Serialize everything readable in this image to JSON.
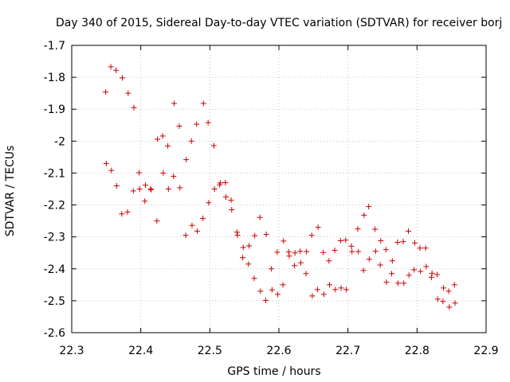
{
  "chart_data": {
    "type": "scatter",
    "title": "Day 340 of 2015, Sidereal Day-to-day VTEC variation (SDTVAR) for receiver borj",
    "xlabel": "GPS time / hours",
    "ylabel": "SDTVAR / TECUs",
    "xlim": [
      22.3,
      22.9
    ],
    "ylim": [
      -2.6,
      -1.7
    ],
    "xticks": [
      22.3,
      22.4,
      22.5,
      22.6,
      22.7,
      22.8,
      22.9
    ],
    "yticks": [
      -2.6,
      -2.5,
      -2.4,
      -2.3,
      -2.2,
      -2.1,
      -2.0,
      -1.9,
      -1.8,
      -1.7
    ],
    "xtick_labels": [
      "22.3",
      "22.4",
      "22.5",
      "22.6",
      "22.7",
      "22.8",
      "22.9"
    ],
    "ytick_labels": [
      "-2.6",
      "-2.5",
      "-2.4",
      "-2.3",
      "-2.2",
      "-2.1",
      "-2",
      "-1.9",
      "-1.8",
      "-1.7"
    ],
    "grid": true,
    "marker": "+",
    "marker_color": "#cc0000",
    "series": [
      {
        "name": "SDTVAR",
        "points": [
          [
            22.3492,
            -1.846
          ],
          [
            22.35,
            -2.07
          ],
          [
            22.3567,
            -1.767
          ],
          [
            22.3575,
            -2.092
          ],
          [
            22.3642,
            -1.778
          ],
          [
            22.365,
            -2.14
          ],
          [
            22.3725,
            -2.228
          ],
          [
            22.3733,
            -1.802
          ],
          [
            22.3808,
            -2.222
          ],
          [
            22.3817,
            -1.85
          ],
          [
            22.3892,
            -2.156
          ],
          [
            22.39,
            -1.895
          ],
          [
            22.3975,
            -2.099
          ],
          [
            22.3983,
            -2.15
          ],
          [
            22.4058,
            -2.188
          ],
          [
            22.4067,
            -2.138
          ],
          [
            22.4142,
            -2.15
          ],
          [
            22.415,
            -2.152
          ],
          [
            22.4233,
            -2.25
          ],
          [
            22.4242,
            -1.994
          ],
          [
            22.4317,
            -1.984
          ],
          [
            22.4325,
            -2.1
          ],
          [
            22.4392,
            -2.015
          ],
          [
            22.44,
            -2.15
          ],
          [
            22.4475,
            -2.11
          ],
          [
            22.4483,
            -1.882
          ],
          [
            22.4558,
            -1.953
          ],
          [
            22.4567,
            -2.146
          ],
          [
            22.465,
            -2.295
          ],
          [
            22.4658,
            -2.058
          ],
          [
            22.4733,
            -2.0
          ],
          [
            22.4742,
            -2.264
          ],
          [
            22.4808,
            -1.947
          ],
          [
            22.4817,
            -2.282
          ],
          [
            22.49,
            -2.242
          ],
          [
            22.4908,
            -1.882
          ],
          [
            22.4975,
            -1.942
          ],
          [
            22.4983,
            -2.193
          ],
          [
            22.5058,
            -2.014
          ],
          [
            22.5067,
            -2.15
          ],
          [
            22.5142,
            -2.137
          ],
          [
            22.515,
            -2.131
          ],
          [
            22.5225,
            -2.13
          ],
          [
            22.5233,
            -2.175
          ],
          [
            22.5308,
            -2.185
          ],
          [
            22.5317,
            -2.215
          ],
          [
            22.5392,
            -2.285
          ],
          [
            22.54,
            -2.295
          ],
          [
            22.5475,
            -2.365
          ],
          [
            22.5483,
            -2.333
          ],
          [
            22.5558,
            -2.385
          ],
          [
            22.5567,
            -2.328
          ],
          [
            22.5642,
            -2.43
          ],
          [
            22.565,
            -2.296
          ],
          [
            22.5725,
            -2.239
          ],
          [
            22.5733,
            -2.47
          ],
          [
            22.5808,
            -2.499
          ],
          [
            22.5817,
            -2.292
          ],
          [
            22.5892,
            -2.4
          ],
          [
            22.59,
            -2.466
          ],
          [
            22.5975,
            -2.348
          ],
          [
            22.5983,
            -2.48
          ],
          [
            22.6058,
            -2.45
          ],
          [
            22.6067,
            -2.313
          ],
          [
            22.6142,
            -2.347
          ],
          [
            22.615,
            -2.36
          ],
          [
            22.6225,
            -2.39
          ],
          [
            22.6233,
            -2.35
          ],
          [
            22.6308,
            -2.345
          ],
          [
            22.6317,
            -2.381
          ],
          [
            22.6392,
            -2.415
          ],
          [
            22.64,
            -2.346
          ],
          [
            22.6475,
            -2.295
          ],
          [
            22.6483,
            -2.485
          ],
          [
            22.6558,
            -2.465
          ],
          [
            22.6567,
            -2.27
          ],
          [
            22.6642,
            -2.349
          ],
          [
            22.665,
            -2.48
          ],
          [
            22.6725,
            -2.375
          ],
          [
            22.6733,
            -2.45
          ],
          [
            22.6808,
            -2.342
          ],
          [
            22.6817,
            -2.465
          ],
          [
            22.6892,
            -2.312
          ],
          [
            22.69,
            -2.46
          ],
          [
            22.6967,
            -2.31
          ],
          [
            22.6975,
            -2.465
          ],
          [
            22.705,
            -2.329
          ],
          [
            22.7058,
            -2.346
          ],
          [
            22.7142,
            -2.275
          ],
          [
            22.715,
            -2.346
          ],
          [
            22.7225,
            -2.405
          ],
          [
            22.7233,
            -2.232
          ],
          [
            22.73,
            -2.205
          ],
          [
            22.7308,
            -2.37
          ],
          [
            22.7392,
            -2.276
          ],
          [
            22.74,
            -2.345
          ],
          [
            22.7467,
            -2.388
          ],
          [
            22.7475,
            -2.312
          ],
          [
            22.755,
            -2.34
          ],
          [
            22.7558,
            -2.442
          ],
          [
            22.7633,
            -2.415
          ],
          [
            22.7642,
            -2.375
          ],
          [
            22.7717,
            -2.317
          ],
          [
            22.7725,
            -2.445
          ],
          [
            22.78,
            -2.315
          ],
          [
            22.7808,
            -2.445
          ],
          [
            22.7875,
            -2.282
          ],
          [
            22.7883,
            -2.42
          ],
          [
            22.7958,
            -2.403
          ],
          [
            22.7967,
            -2.319
          ],
          [
            22.8042,
            -2.335
          ],
          [
            22.805,
            -2.408
          ],
          [
            22.8125,
            -2.335
          ],
          [
            22.8133,
            -2.393
          ],
          [
            22.8208,
            -2.427
          ],
          [
            22.8217,
            -2.414
          ],
          [
            22.8292,
            -2.418
          ],
          [
            22.83,
            -2.495
          ],
          [
            22.8375,
            -2.502
          ],
          [
            22.8383,
            -2.46
          ],
          [
            22.8458,
            -2.47
          ],
          [
            22.8467,
            -2.52
          ],
          [
            22.8542,
            -2.45
          ],
          [
            22.855,
            -2.507
          ]
        ]
      }
    ]
  }
}
